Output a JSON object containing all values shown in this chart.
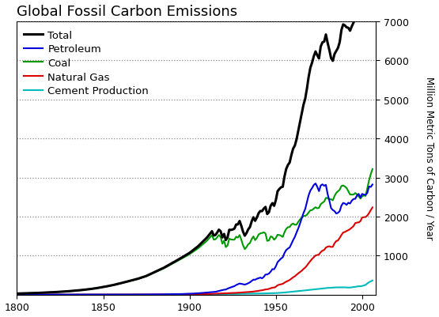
{
  "title": "Global Fossil Carbon Emissions",
  "ylabel": "Million Metric Tons of Carbon / Year",
  "xlim": [
    1800,
    2008
  ],
  "ylim": [
    0,
    7000
  ],
  "yticks": [
    1000,
    2000,
    3000,
    4000,
    5000,
    6000,
    7000
  ],
  "xticks": [
    1800,
    1850,
    1900,
    1950,
    2000
  ],
  "legend": {
    "labels": [
      "Total",
      "Petroleum",
      "Coal",
      "Natural Gas",
      "Cement Production"
    ],
    "colors": [
      "#000000",
      "#0000dd",
      "#009900",
      "#dd0000",
      "#00bbbb"
    ],
    "linewidths": [
      2.2,
      1.5,
      1.5,
      1.5,
      1.5
    ]
  },
  "background": "#ffffff"
}
